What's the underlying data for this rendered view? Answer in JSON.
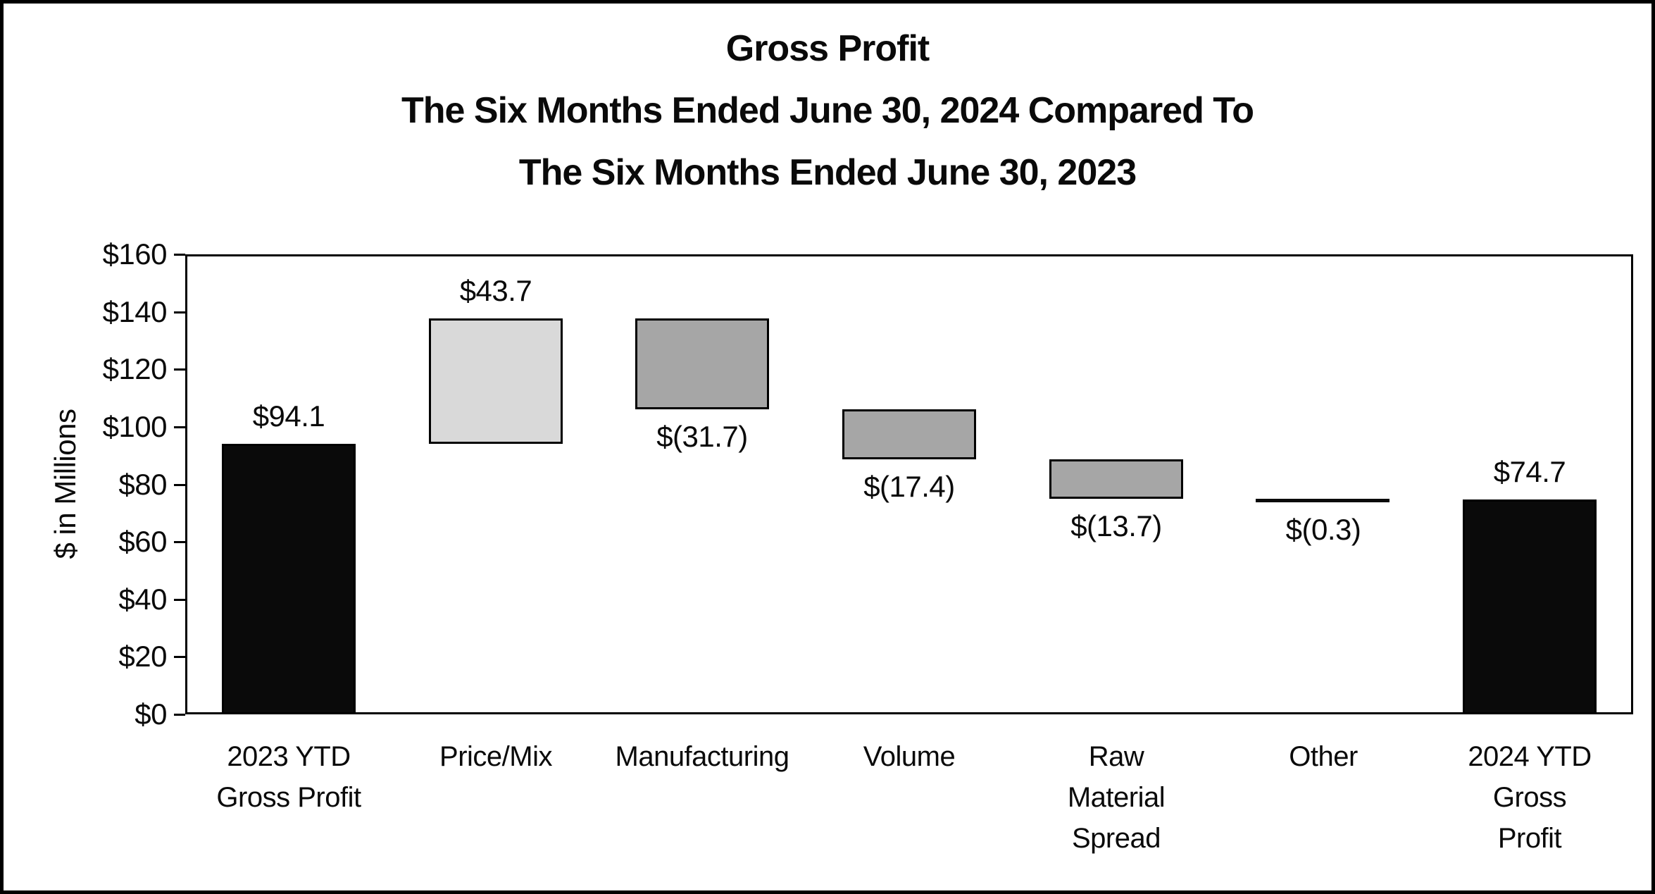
{
  "title": {
    "line1": "Gross Profit",
    "line2": "The Six Months Ended June 30, 2024 Compared To",
    "line3": "The Six Months Ended June 30, 2023"
  },
  "colors": {
    "total_bar": "#0a0a0a",
    "increase_bar": "#d9d9d9",
    "decrease_bar": "#a6a6a6",
    "bar_outline": "#000000",
    "text": "#0a0a0a",
    "frame": "#000000",
    "background": "#ffffff"
  },
  "chart_data": {
    "type": "bar",
    "subtype": "waterfall",
    "title": "Gross Profit — The Six Months Ended June 30, 2024 Compared To The Six Months Ended June 30, 2023",
    "xlabel": "",
    "ylabel": "$ in Millions",
    "ylim": [
      0,
      160
    ],
    "ytick_step": 20,
    "ytick_labels": [
      "$0",
      "$20",
      "$40",
      "$60",
      "$80",
      "$100",
      "$120",
      "$140",
      "$160"
    ],
    "grid": false,
    "legend": "none",
    "categories": [
      "2023 YTD Gross Profit",
      "Price/Mix",
      "Manufacturing",
      "Volume",
      "Raw Material Spread",
      "Other",
      "2024 YTD Gross Profit"
    ],
    "bars": [
      {
        "id": "2023-ytd-gross-profit",
        "label_lines": [
          "2023 YTD",
          "Gross Profit"
        ],
        "value": 94.1,
        "start": 0,
        "end": 94.1,
        "value_label": "$94.1",
        "label_pos": "above",
        "role": "total",
        "color": "#0a0a0a"
      },
      {
        "id": "price-mix",
        "label_lines": [
          "Price/Mix"
        ],
        "value": 43.7,
        "start": 94.1,
        "end": 137.8,
        "value_label": "$43.7",
        "label_pos": "above",
        "role": "increase",
        "color": "#d9d9d9"
      },
      {
        "id": "manufacturing",
        "label_lines": [
          "Manufacturing"
        ],
        "value": -31.7,
        "start": 137.8,
        "end": 106.1,
        "value_label": "$(31.7)",
        "label_pos": "below",
        "role": "decrease",
        "color": "#a6a6a6"
      },
      {
        "id": "volume",
        "label_lines": [
          "Volume"
        ],
        "value": -17.4,
        "start": 106.1,
        "end": 88.7,
        "value_label": "$(17.4)",
        "label_pos": "below",
        "role": "decrease",
        "color": "#a6a6a6"
      },
      {
        "id": "raw-material-spread",
        "label_lines": [
          "Raw",
          "Material",
          "Spread"
        ],
        "value": -13.7,
        "start": 88.7,
        "end": 75.0,
        "value_label": "$(13.7)",
        "label_pos": "below",
        "role": "decrease",
        "color": "#a6a6a6"
      },
      {
        "id": "other",
        "label_lines": [
          "Other"
        ],
        "value": -0.3,
        "start": 75.0,
        "end": 74.7,
        "value_label": "$(0.3)",
        "label_pos": "below",
        "role": "decrease-thin",
        "color": "#0a0a0a"
      },
      {
        "id": "2024-ytd-gross-profit",
        "label_lines": [
          "2024 YTD",
          "Gross",
          "Profit"
        ],
        "value": 74.7,
        "start": 0,
        "end": 74.7,
        "value_label": "$74.7",
        "label_pos": "above",
        "role": "total",
        "color": "#0a0a0a"
      }
    ]
  }
}
